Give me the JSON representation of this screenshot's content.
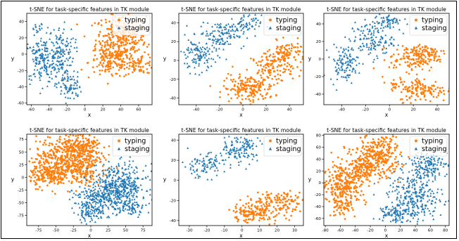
{
  "colors": {
    "typing": "#ff7f0e",
    "staging": "#1f77b4"
  },
  "chart_data": [
    {
      "type": "scatter",
      "title": "t-SNE for task-specific features in TK module",
      "xlabel": "x",
      "ylabel": "y",
      "xlim": [
        -65,
        75
      ],
      "ylim": [
        -62,
        50
      ],
      "xticks": [
        -60,
        -40,
        -20,
        0,
        20,
        40,
        60
      ],
      "yticks": [
        -60,
        -40,
        -20,
        0,
        20,
        40
      ],
      "legend": {
        "position": "top-right",
        "entries": [
          "typing",
          "staging"
        ]
      },
      "series": [
        {
          "name": "typing",
          "marker": "circle",
          "clusters": [
            [
              40,
              18,
              14,
              16,
              320
            ],
            [
              28,
              -10,
              12,
              10,
              120
            ],
            [
              62,
              -12,
              8,
              6,
              60
            ]
          ]
        },
        {
          "name": "staging",
          "marker": "triangle",
          "clusters": [
            [
              -48,
              -8,
              10,
              14,
              160
            ],
            [
              -28,
              2,
              8,
              16,
              140
            ],
            [
              -18,
              -40,
              7,
              9,
              80
            ],
            [
              -52,
              30,
              4,
              4,
              15
            ]
          ]
        }
      ]
    },
    {
      "type": "scatter",
      "title": "t-SNE for task-specific features in TK module",
      "xlabel": "x",
      "ylabel": "y",
      "xlim": [
        -55,
        52
      ],
      "ylim": [
        -47,
        50
      ],
      "xticks": [
        -40,
        -20,
        0,
        20,
        40
      ],
      "yticks": [
        -40,
        -20,
        0,
        20,
        40
      ],
      "legend": {
        "position": "top-right",
        "entries": [
          "typing",
          "staging"
        ]
      },
      "series": [
        {
          "name": "typing",
          "marker": "circle",
          "clusters": [
            [
              5,
              -30,
              11,
              7,
              170
            ],
            [
              25,
              -8,
              9,
              8,
              120
            ],
            [
              38,
              8,
              8,
              6,
              90
            ]
          ]
        },
        {
          "name": "staging",
          "marker": "triangle",
          "clusters": [
            [
              -38,
              5,
              8,
              9,
              120
            ],
            [
              -18,
              28,
              10,
              7,
              110
            ],
            [
              0,
              38,
              8,
              5,
              60
            ]
          ]
        }
      ]
    },
    {
      "type": "scatter",
      "title": "t-SNE for task-specific features in TK module",
      "xlabel": "x",
      "ylabel": "y",
      "xlim": [
        -55,
        50
      ],
      "ylim": [
        -52,
        52
      ],
      "xticks": [
        -40,
        -20,
        0,
        20,
        40
      ],
      "yticks": [
        -40,
        -20,
        0,
        20,
        40
      ],
      "legend": {
        "position": "top-right",
        "entries": [
          "typing",
          "staging"
        ]
      },
      "series": [
        {
          "name": "typing",
          "marker": "circle",
          "clusters": [
            [
              20,
              0,
              10,
              7,
              110
            ],
            [
              30,
              8,
              9,
              5,
              70
            ],
            [
              28,
              -35,
              10,
              7,
              130
            ],
            [
              5,
              -28,
              4,
              3,
              20
            ]
          ]
        },
        {
          "name": "staging",
          "marker": "triangle",
          "clusters": [
            [
              -38,
              -5,
              6,
              10,
              110
            ],
            [
              -15,
              22,
              9,
              10,
              130
            ],
            [
              -2,
              42,
              6,
              5,
              60
            ]
          ]
        }
      ]
    },
    {
      "type": "scatter",
      "title": "t-SNE for task-specific features in TK module",
      "xlabel": "x",
      "ylabel": "y",
      "xlim": [
        -92,
        88
      ],
      "ylim": [
        -95,
        85
      ],
      "xticks": [
        -75,
        -50,
        -25,
        0,
        25,
        50,
        75
      ],
      "yticks": [
        -75,
        -50,
        -25,
        0,
        25,
        50,
        75
      ],
      "legend": {
        "position": "top-right",
        "entries": [
          "typing",
          "staging"
        ]
      },
      "series": [
        {
          "name": "typing",
          "marker": "circle",
          "clusters": [
            [
              -35,
              40,
              22,
              22,
              420
            ],
            [
              -60,
              5,
              14,
              12,
              180
            ],
            [
              -10,
              55,
              16,
              16,
              160
            ],
            [
              -10,
              10,
              12,
              12,
              80
            ]
          ]
        },
        {
          "name": "staging",
          "marker": "triangle",
          "clusters": [
            [
              40,
              -15,
              20,
              20,
              380
            ],
            [
              15,
              -45,
              20,
              14,
              220
            ],
            [
              60,
              -55,
              10,
              10,
              70
            ],
            [
              0,
              -70,
              10,
              8,
              70
            ]
          ]
        }
      ]
    },
    {
      "type": "scatter",
      "title": "t-SNE for task-specific features in TK module",
      "xlabel": "x",
      "ylabel": "y",
      "xlim": [
        -36,
        35
      ],
      "ylim": [
        -45,
        46
      ],
      "xticks": [
        -30,
        -20,
        -10,
        0,
        10,
        20,
        30
      ],
      "yticks": [
        -40,
        -20,
        0,
        20,
        40
      ],
      "legend": {
        "position": "top-right",
        "entries": [
          "typing",
          "staging"
        ]
      },
      "series": [
        {
          "name": "typing",
          "marker": "circle",
          "clusters": [
            [
              10,
              -30,
              8,
              6,
              130
            ],
            [
              22,
              -20,
              7,
              5,
              100
            ],
            [
              2,
              -36,
              4,
              4,
              30
            ]
          ]
        },
        {
          "name": "staging",
          "marker": "triangle",
          "clusters": [
            [
              -22,
              15,
              6,
              6,
              90
            ],
            [
              -4,
              27,
              6,
              6,
              90
            ],
            [
              3,
              37,
              4,
              4,
              40
            ]
          ]
        }
      ]
    },
    {
      "type": "scatter",
      "title": "t-SNE for task-specific features in TK module",
      "xlabel": "x",
      "ylabel": "y",
      "xlim": [
        -82,
        85
      ],
      "ylim": [
        -72,
        82
      ],
      "xticks": [
        -80,
        -60,
        -40,
        -20,
        0,
        20,
        40,
        60,
        80
      ],
      "yticks": [
        -60,
        -40,
        -20,
        0,
        20,
        40,
        60,
        80
      ],
      "legend": {
        "position": "top-right",
        "entries": [
          "typing",
          "staging"
        ]
      },
      "series": [
        {
          "name": "typing",
          "marker": "circle",
          "clusters": [
            [
              -55,
              0,
              15,
              18,
              260
            ],
            [
              -10,
              45,
              15,
              18,
              300
            ],
            [
              -30,
              20,
              10,
              10,
              100
            ],
            [
              -60,
              -40,
              8,
              8,
              50
            ]
          ]
        },
        {
          "name": "staging",
          "marker": "triangle",
          "clusters": [
            [
              40,
              -25,
              18,
              20,
              280
            ],
            [
              55,
              30,
              14,
              12,
              160
            ],
            [
              10,
              -50,
              10,
              8,
              80
            ]
          ]
        }
      ]
    }
  ]
}
